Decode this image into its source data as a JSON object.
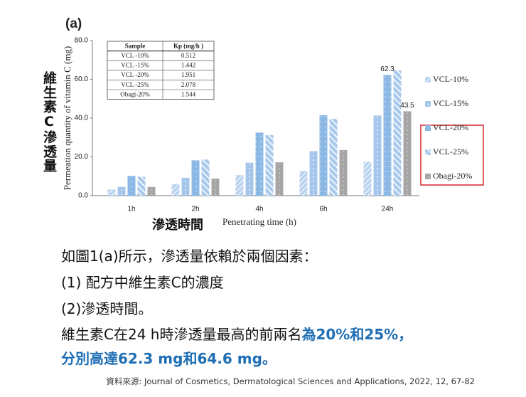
{
  "chart_data": {
    "type": "bar",
    "title": "(a)",
    "y_label": "Permeation quantity of vitamin C (mg)",
    "y_label_zh": "維生素C滲透量",
    "x_label": "Penetrating time (h)",
    "x_label_zh": "滲透時間",
    "categories": [
      "1h",
      "2h",
      "4h",
      "6h",
      "24h"
    ],
    "series": [
      {
        "name": "VCL-10%",
        "color": "#b9d3ee",
        "values": [
          3.2,
          6.0,
          10.6,
          12.8,
          17.5
        ],
        "value_labels": [
          null,
          null,
          null,
          null,
          null
        ]
      },
      {
        "name": "VCL-15%",
        "color": "#a4c6ea",
        "values": [
          4.5,
          9.2,
          17.0,
          23.0,
          41.3
        ],
        "value_labels": [
          null,
          null,
          null,
          null,
          null
        ]
      },
      {
        "name": "VCL-20%",
        "color": "#8cb8e6",
        "values": [
          10.2,
          18.2,
          32.5,
          41.5,
          62.3
        ],
        "value_labels": [
          null,
          null,
          null,
          null,
          "62.3"
        ]
      },
      {
        "name": "VCL-25%",
        "color": "#a9c9ec",
        "values": [
          9.8,
          18.6,
          31.2,
          39.6,
          64.6
        ],
        "value_labels": [
          null,
          null,
          null,
          null,
          null
        ]
      },
      {
        "name": "Obagi-20%",
        "color": "#a6a6a6",
        "values": [
          4.5,
          8.8,
          17.2,
          23.5,
          43.5
        ],
        "value_labels": [
          null,
          null,
          null,
          null,
          "43.5"
        ]
      }
    ],
    "ylim": [
      0,
      80
    ],
    "yticks": [
      {
        "value": 0,
        "label": "0.0"
      },
      {
        "value": 20,
        "label": "20.0"
      },
      {
        "value": 40,
        "label": "40.0"
      },
      {
        "value": 60,
        "label": "60.0"
      },
      {
        "value": 80,
        "label": "80.0"
      }
    ],
    "legend": "right",
    "table": {
      "header": [
        "Sample",
        "Kp (mg/h )"
      ],
      "rows": [
        [
          "VCL -10%",
          0.512
        ],
        [
          "VCL -15%",
          1.442
        ],
        [
          "VCL -20%",
          1.951
        ],
        [
          "VCL -25%",
          2.078
        ],
        [
          "Obagi-20%",
          1.544
        ]
      ]
    }
  },
  "text": {
    "line1": "如圖1(a)所示，滲透量依賴於兩個因素：",
    "line2": "(1) 配方中維生素C的濃度",
    "line3": "(2)滲透時間。",
    "line4a": "維生素C在24 h時滲透量最高的前兩名",
    "line4b": "為20%和25%，",
    "line5": "分別高達62.3 mg和64.6 mg。",
    "source": "資料來源: Journal of Cosmetics, Dermatological Sciences and Applications, 2022, 12, 67-82"
  }
}
